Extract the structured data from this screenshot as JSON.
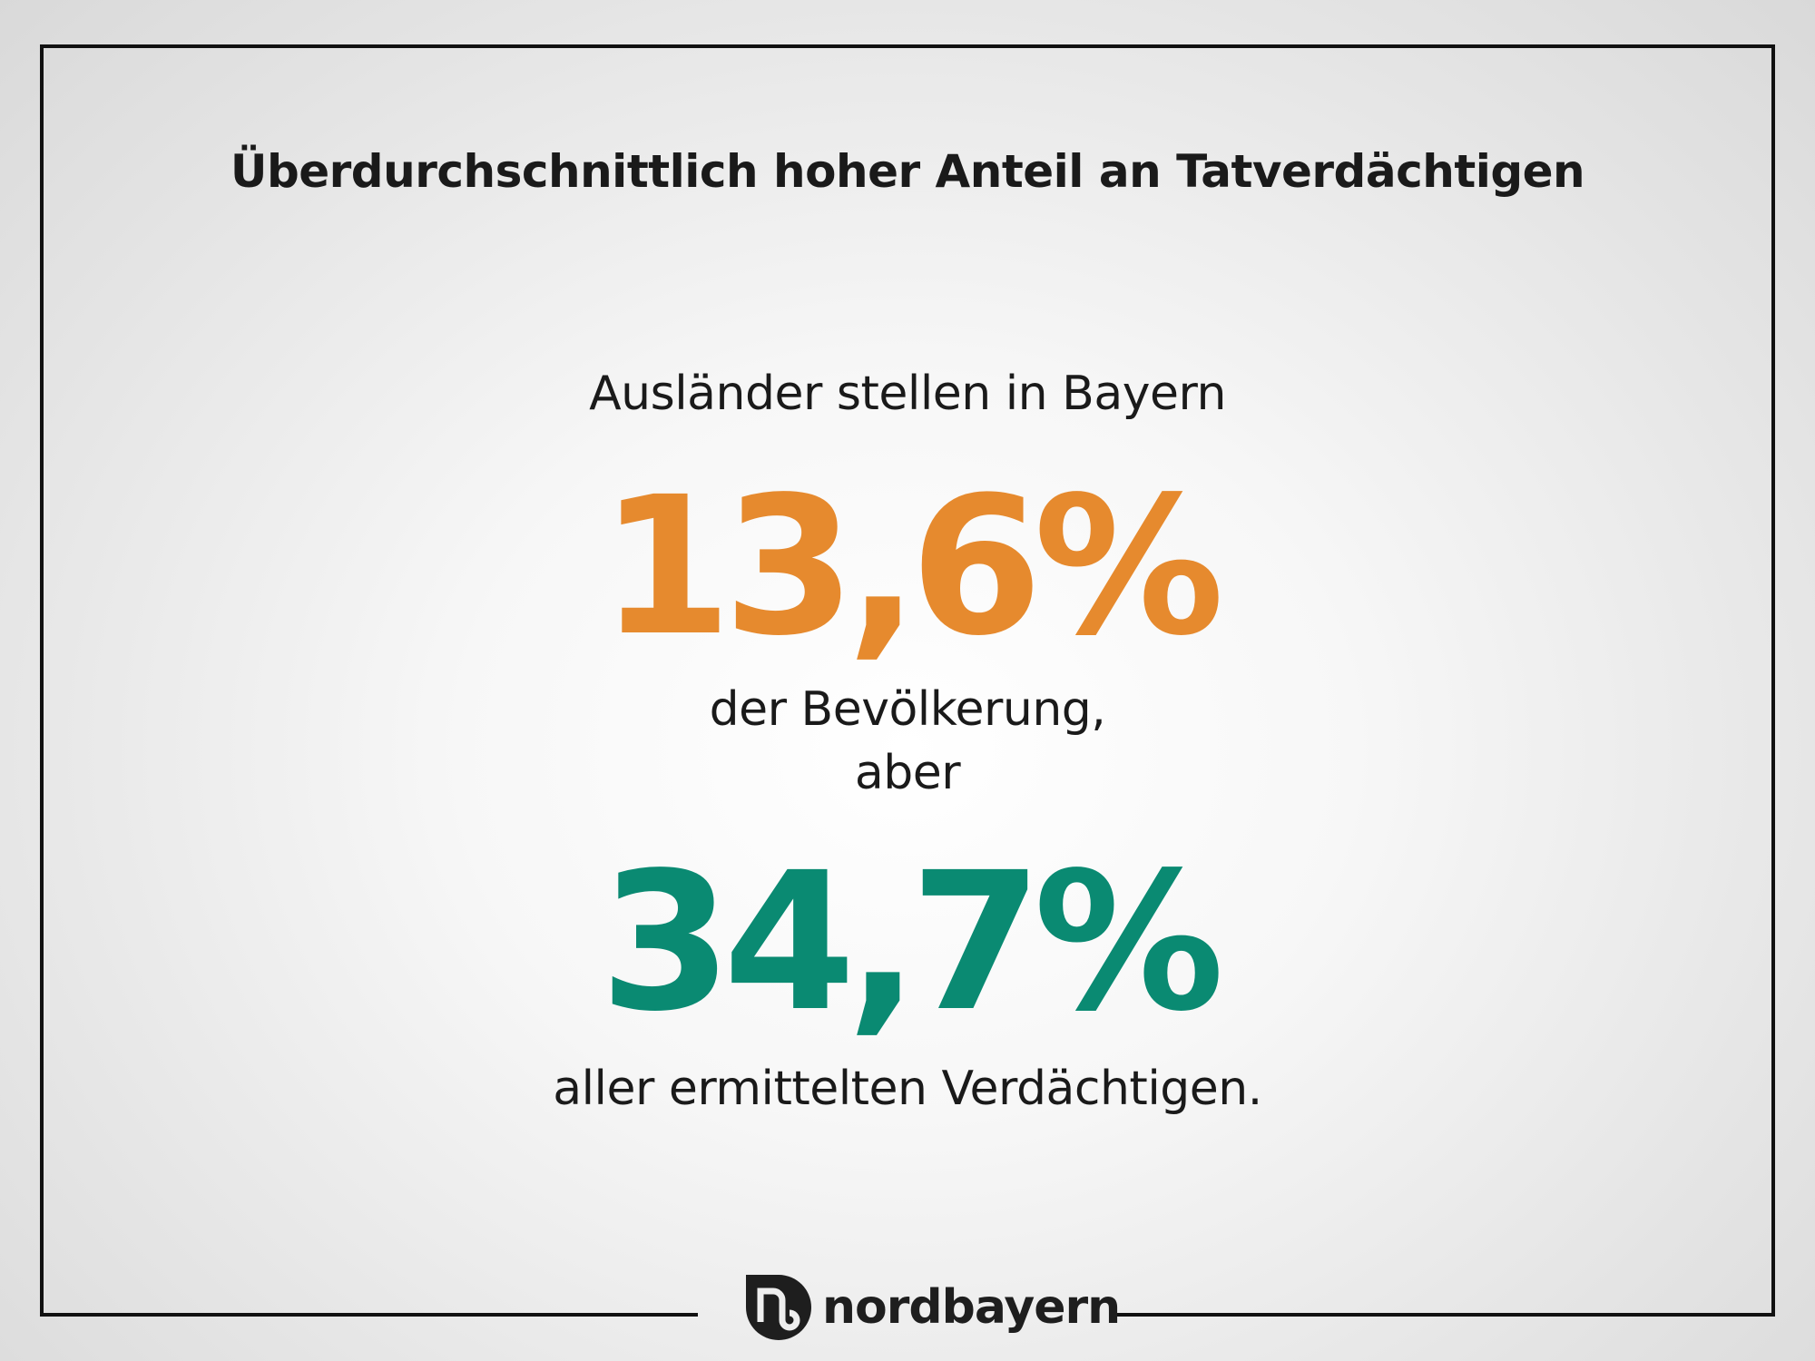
{
  "title": "Überdurchschnittlich hoher Anteil an Tatverdächtigen",
  "intro": "Ausländer stellen in Bayern",
  "stat1": {
    "value": "13,6%",
    "color": "#e68a2e"
  },
  "middle_line1": "der Bevölkerung,",
  "middle_line2": "aber",
  "stat2": {
    "value": "34,7%",
    "color": "#0a8a72"
  },
  "outro": "aller ermittelten Verdächtigen.",
  "brand": {
    "name": "nordbayern",
    "icon": "nb-logo-icon"
  }
}
